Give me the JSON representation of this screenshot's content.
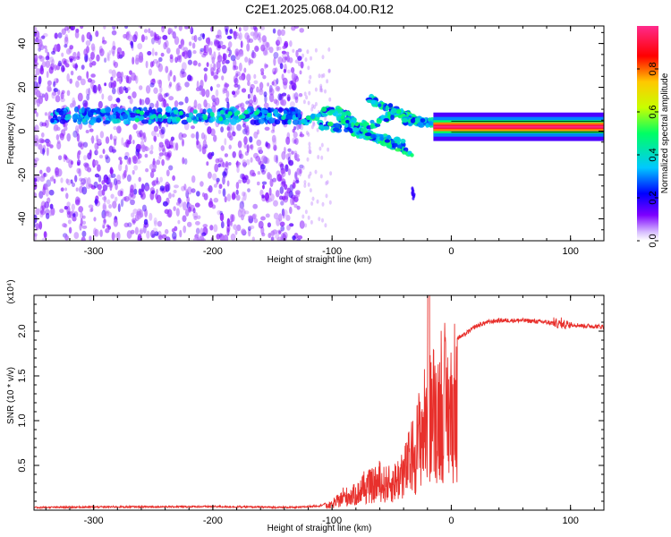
{
  "title": "C2E1.2025.068.04.00.R12",
  "chart_data": [
    {
      "type": "heatmap",
      "xlabel": "Height of straight line (km)",
      "ylabel": "Frequency (Hz)",
      "xlim": [
        -350,
        128
      ],
      "ylim": [
        -50,
        48
      ],
      "xticks": [
        -300,
        -200,
        -100,
        0,
        100
      ],
      "yticks": [
        -40,
        -20,
        0,
        20,
        40
      ],
      "colorbar": {
        "label": "Normalized spectral amplitude",
        "range": [
          0,
          1
        ],
        "ticks": [
          0.0,
          0.2,
          0.4,
          0.6,
          0.8
        ],
        "tick_labels": [
          "0.0",
          "0.2",
          "0.4",
          "0.6",
          "0.8"
        ],
        "colormap": [
          "#ffffff",
          "#7d00ff",
          "#0000ff",
          "#00c8ff",
          "#00ff64",
          "#c8ff00",
          "#ffc800",
          "#ff0000",
          "#ff2a8c"
        ]
      },
      "features": [
        {
          "name": "broadband scatter",
          "x_range": [
            -350,
            -125
          ],
          "y_range": [
            -50,
            48
          ],
          "amplitude": 0.05
        },
        {
          "name": "band near 7 Hz",
          "x_range": [
            -335,
            -125
          ],
          "y_center": 7,
          "amplitude": 0.25
        },
        {
          "name": "multi-branch feature",
          "x_range": [
            -125,
            -10
          ],
          "y_range": [
            -30,
            16
          ],
          "amplitude": 0.4
        },
        {
          "name": "stable narrow line",
          "x_range": [
            -15,
            128
          ],
          "y_center": 2,
          "amplitude": 0.9
        }
      ]
    },
    {
      "type": "line",
      "xlabel": "Height of straight line (km)",
      "ylabel": "SNR (10 * v/v)",
      "y_multiplier_label": "(x10⁴)",
      "xlim": [
        -350,
        128
      ],
      "ylim": [
        0,
        2.4
      ],
      "xticks": [
        -300,
        -200,
        -100,
        0,
        100
      ],
      "yticks": [
        0.5,
        1.0,
        1.5,
        2.0
      ],
      "ytick_labels": [
        "0.5",
        "1.0",
        "1.5",
        "2.0"
      ],
      "series": [
        {
          "color": "#e8302c",
          "envelope": {
            "x": [
              -350,
              -300,
              -200,
              -130,
              -110,
              -100,
              -90,
              -80,
              -70,
              -60,
              -50,
              -40,
              -30,
              -25,
              -20,
              -15,
              -10,
              -5,
              0,
              10,
              20,
              30,
              40,
              60,
              80,
              90,
              100,
              110,
              128
            ],
            "y": [
              0.03,
              0.035,
              0.04,
              0.03,
              0.05,
              0.1,
              0.25,
              0.3,
              0.45,
              0.5,
              0.5,
              0.7,
              1.15,
              1.55,
              1.7,
              1.9,
              1.9,
              1.95,
              1.9,
              1.95,
              2.05,
              2.1,
              2.12,
              2.12,
              2.1,
              2.08,
              2.08,
              2.06,
              2.05
            ]
          }
        }
      ]
    }
  ]
}
